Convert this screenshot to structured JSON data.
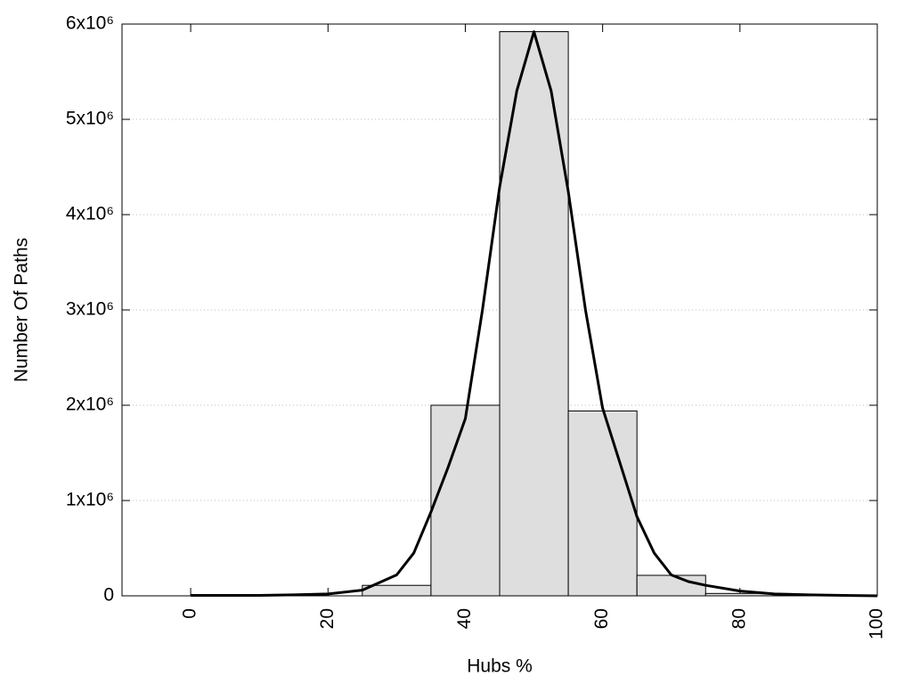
{
  "chart_data": {
    "type": "histogram",
    "xlabel": "Hubs %",
    "ylabel": "Number Of Paths",
    "bins": [
      25,
      35,
      45,
      55,
      65,
      75,
      85
    ],
    "values": [
      110000,
      2000000,
      5920000,
      1940000,
      215000,
      25000
    ],
    "color": "#dedede",
    "curve": {
      "color": "#000000",
      "x": [
        0,
        5,
        10,
        15,
        20,
        25,
        30,
        32.5,
        35,
        37.5,
        40,
        42.5,
        45,
        47.5,
        50,
        52.5,
        55,
        57.5,
        60,
        62.5,
        65,
        67.5,
        70,
        72.5,
        75,
        80,
        85,
        90,
        95,
        100
      ],
      "values": [
        5000,
        5000,
        5000,
        10000,
        20000,
        60000,
        220000,
        450000,
        880000,
        1350000,
        1860000,
        3000000,
        4290000,
        5300000,
        5920000,
        5300000,
        4240000,
        3000000,
        1970000,
        1400000,
        830000,
        450000,
        220000,
        150000,
        110000,
        50000,
        20000,
        10000,
        5000,
        0
      ]
    },
    "xlim": [
      -10,
      100
    ],
    "ylim": [
      0,
      6000000
    ],
    "xticks": [
      0,
      20,
      40,
      60,
      80,
      100
    ],
    "yticks": [
      0,
      {
        "value": 1000000,
        "label": "1x10⁶"
      },
      {
        "value": 2000000,
        "label": "2x10⁶"
      },
      {
        "value": 3000000,
        "label": "3x10⁶"
      },
      {
        "value": 4000000,
        "label": "4x10⁶"
      },
      {
        "value": 5000000,
        "label": "5x10⁶"
      },
      {
        "value": 6000000,
        "label": "6x10⁶"
      }
    ],
    "grid": true
  }
}
